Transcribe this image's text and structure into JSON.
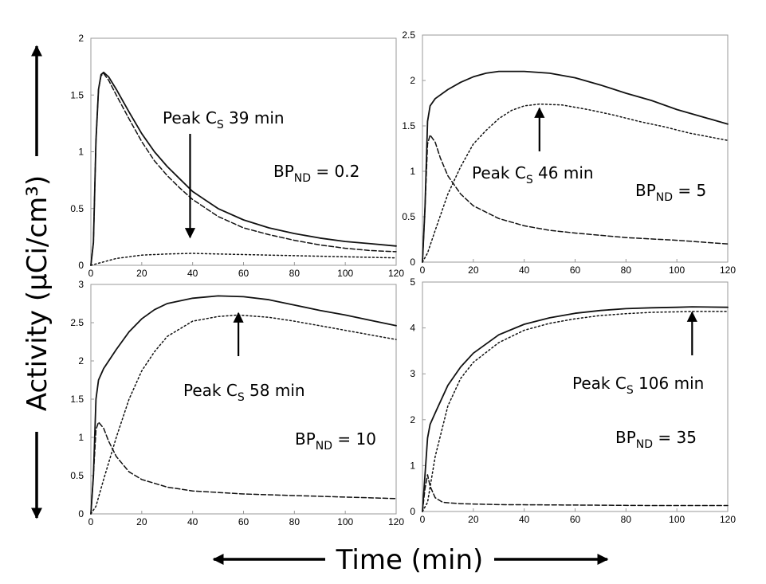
{
  "figure": {
    "ylabel": "Activity (µCi/cm³)",
    "xlabel": "Time (min)"
  },
  "chart_data": [
    {
      "type": "line",
      "x_ticks": [
        0,
        20,
        40,
        60,
        80,
        100,
        120
      ],
      "y_ticks": [
        0,
        0.5,
        1,
        1.5,
        2
      ],
      "xlim": [
        0,
        120
      ],
      "ylim": [
        0,
        2
      ],
      "grid": false,
      "annotations": [
        {
          "id": "peak",
          "prefix": "Peak C",
          "sub": "S",
          "suffix": " 39 min",
          "arrow_x": 39
        },
        {
          "id": "bp",
          "prefix": "BP",
          "sub": "ND",
          "suffix": " = 0.2"
        }
      ],
      "series": [
        {
          "style": "solid",
          "points": [
            [
              0,
              0
            ],
            [
              1,
              0.2
            ],
            [
              2,
              1.1
            ],
            [
              3,
              1.55
            ],
            [
              4,
              1.68
            ],
            [
              5,
              1.7
            ],
            [
              7,
              1.66
            ],
            [
              10,
              1.55
            ],
            [
              15,
              1.35
            ],
            [
              20,
              1.16
            ],
            [
              25,
              1.0
            ],
            [
              30,
              0.87
            ],
            [
              35,
              0.76
            ],
            [
              40,
              0.65
            ],
            [
              50,
              0.5
            ],
            [
              60,
              0.4
            ],
            [
              70,
              0.33
            ],
            [
              80,
              0.28
            ],
            [
              90,
              0.24
            ],
            [
              100,
              0.21
            ],
            [
              110,
              0.19
            ],
            [
              120,
              0.17
            ]
          ]
        },
        {
          "style": "dashed",
          "points": [
            [
              0,
              0
            ],
            [
              1,
              0.2
            ],
            [
              2,
              1.1
            ],
            [
              3,
              1.55
            ],
            [
              4,
              1.67
            ],
            [
              5,
              1.69
            ],
            [
              7,
              1.63
            ],
            [
              10,
              1.5
            ],
            [
              15,
              1.29
            ],
            [
              20,
              1.09
            ],
            [
              25,
              0.92
            ],
            [
              30,
              0.79
            ],
            [
              35,
              0.68
            ],
            [
              40,
              0.58
            ],
            [
              50,
              0.43
            ],
            [
              60,
              0.33
            ],
            [
              70,
              0.27
            ],
            [
              80,
              0.22
            ],
            [
              90,
              0.18
            ],
            [
              100,
              0.15
            ],
            [
              110,
              0.13
            ],
            [
              120,
              0.12
            ]
          ]
        },
        {
          "style": "dotted",
          "points": [
            [
              0,
              0
            ],
            [
              5,
              0.03
            ],
            [
              10,
              0.06
            ],
            [
              20,
              0.09
            ],
            [
              30,
              0.1
            ],
            [
              40,
              0.105
            ],
            [
              50,
              0.1
            ],
            [
              60,
              0.095
            ],
            [
              80,
              0.085
            ],
            [
              100,
              0.075
            ],
            [
              120,
              0.065
            ]
          ]
        }
      ]
    },
    {
      "type": "line",
      "x_ticks": [
        0,
        20,
        40,
        60,
        80,
        100,
        120
      ],
      "y_ticks": [
        0,
        0.5,
        1,
        1.5,
        2,
        2.5
      ],
      "xlim": [
        0,
        120
      ],
      "ylim": [
        0,
        2.5
      ],
      "grid": false,
      "annotations": [
        {
          "id": "peak",
          "prefix": "Peak C",
          "sub": "S",
          "suffix": " 46 min",
          "arrow_x": 46
        },
        {
          "id": "bp",
          "prefix": "BP",
          "sub": "ND",
          "suffix": " = 5"
        }
      ],
      "series": [
        {
          "style": "solid",
          "points": [
            [
              0,
              0
            ],
            [
              1,
              0.6
            ],
            [
              2,
              1.55
            ],
            [
              3,
              1.72
            ],
            [
              5,
              1.8
            ],
            [
              10,
              1.9
            ],
            [
              15,
              1.98
            ],
            [
              20,
              2.04
            ],
            [
              25,
              2.08
            ],
            [
              30,
              2.1
            ],
            [
              35,
              2.1
            ],
            [
              40,
              2.1
            ],
            [
              50,
              2.08
            ],
            [
              60,
              2.03
            ],
            [
              70,
              1.95
            ],
            [
              80,
              1.86
            ],
            [
              90,
              1.78
            ],
            [
              100,
              1.68
            ],
            [
              110,
              1.6
            ],
            [
              120,
              1.52
            ]
          ]
        },
        {
          "style": "dashed",
          "points": [
            [
              0,
              0
            ],
            [
              1,
              0.6
            ],
            [
              2,
              1.3
            ],
            [
              3,
              1.4
            ],
            [
              5,
              1.32
            ],
            [
              7,
              1.15
            ],
            [
              10,
              0.95
            ],
            [
              15,
              0.75
            ],
            [
              20,
              0.62
            ],
            [
              30,
              0.48
            ],
            [
              40,
              0.4
            ],
            [
              50,
              0.35
            ],
            [
              60,
              0.32
            ],
            [
              80,
              0.27
            ],
            [
              100,
              0.24
            ],
            [
              120,
              0.2
            ]
          ]
        },
        {
          "style": "dotted",
          "points": [
            [
              0,
              0
            ],
            [
              2,
              0.1
            ],
            [
              5,
              0.35
            ],
            [
              10,
              0.75
            ],
            [
              15,
              1.05
            ],
            [
              20,
              1.3
            ],
            [
              25,
              1.45
            ],
            [
              30,
              1.58
            ],
            [
              35,
              1.67
            ],
            [
              40,
              1.72
            ],
            [
              46,
              1.74
            ],
            [
              55,
              1.73
            ],
            [
              65,
              1.68
            ],
            [
              75,
              1.62
            ],
            [
              85,
              1.55
            ],
            [
              95,
              1.49
            ],
            [
              105,
              1.42
            ],
            [
              120,
              1.34
            ]
          ]
        }
      ]
    },
    {
      "type": "line",
      "x_ticks": [
        0,
        20,
        40,
        60,
        80,
        100,
        120
      ],
      "y_ticks": [
        0,
        0.5,
        1,
        1.5,
        2,
        2.5,
        3
      ],
      "xlim": [
        0,
        120
      ],
      "ylim": [
        0,
        3
      ],
      "grid": false,
      "annotations": [
        {
          "id": "peak",
          "prefix": "Peak C",
          "sub": "S",
          "suffix": " 58 min",
          "arrow_x": 58
        },
        {
          "id": "bp",
          "prefix": "BP",
          "sub": "ND",
          "suffix": " = 10"
        }
      ],
      "series": [
        {
          "style": "solid",
          "points": [
            [
              0,
              0
            ],
            [
              1,
              0.5
            ],
            [
              2,
              1.5
            ],
            [
              3,
              1.75
            ],
            [
              5,
              1.9
            ],
            [
              10,
              2.15
            ],
            [
              15,
              2.38
            ],
            [
              20,
              2.55
            ],
            [
              25,
              2.67
            ],
            [
              30,
              2.75
            ],
            [
              40,
              2.82
            ],
            [
              50,
              2.85
            ],
            [
              60,
              2.84
            ],
            [
              70,
              2.8
            ],
            [
              80,
              2.73
            ],
            [
              90,
              2.66
            ],
            [
              100,
              2.6
            ],
            [
              110,
              2.53
            ],
            [
              120,
              2.46
            ]
          ]
        },
        {
          "style": "dashed",
          "points": [
            [
              0,
              0
            ],
            [
              1,
              0.5
            ],
            [
              2,
              1.1
            ],
            [
              3,
              1.2
            ],
            [
              5,
              1.12
            ],
            [
              7,
              0.95
            ],
            [
              10,
              0.75
            ],
            [
              15,
              0.55
            ],
            [
              20,
              0.45
            ],
            [
              30,
              0.35
            ],
            [
              40,
              0.3
            ],
            [
              60,
              0.26
            ],
            [
              80,
              0.24
            ],
            [
              100,
              0.22
            ],
            [
              120,
              0.2
            ]
          ]
        },
        {
          "style": "dotted",
          "points": [
            [
              0,
              0
            ],
            [
              2,
              0.1
            ],
            [
              5,
              0.45
            ],
            [
              10,
              1.0
            ],
            [
              15,
              1.5
            ],
            [
              20,
              1.87
            ],
            [
              25,
              2.12
            ],
            [
              30,
              2.32
            ],
            [
              40,
              2.52
            ],
            [
              50,
              2.58
            ],
            [
              58,
              2.6
            ],
            [
              70,
              2.57
            ],
            [
              80,
              2.52
            ],
            [
              90,
              2.46
            ],
            [
              100,
              2.4
            ],
            [
              110,
              2.34
            ],
            [
              120,
              2.28
            ]
          ]
        }
      ]
    },
    {
      "type": "line",
      "x_ticks": [
        0,
        20,
        40,
        60,
        80,
        100,
        120
      ],
      "y_ticks": [
        0,
        1,
        2,
        3,
        4,
        5
      ],
      "xlim": [
        0,
        120
      ],
      "ylim": [
        0,
        5
      ],
      "grid": false,
      "annotations": [
        {
          "id": "peak",
          "prefix": "Peak C",
          "sub": "S",
          "suffix": " 106 min",
          "arrow_x": 106
        },
        {
          "id": "bp",
          "prefix": "BP",
          "sub": "ND",
          "suffix": " = 35"
        }
      ],
      "series": [
        {
          "style": "solid",
          "points": [
            [
              0,
              0
            ],
            [
              1,
              0.8
            ],
            [
              2,
              1.6
            ],
            [
              3,
              1.9
            ],
            [
              5,
              2.15
            ],
            [
              10,
              2.75
            ],
            [
              15,
              3.15
            ],
            [
              20,
              3.45
            ],
            [
              30,
              3.85
            ],
            [
              40,
              4.08
            ],
            [
              50,
              4.22
            ],
            [
              60,
              4.32
            ],
            [
              70,
              4.38
            ],
            [
              80,
              4.42
            ],
            [
              90,
              4.44
            ],
            [
              100,
              4.45
            ],
            [
              106,
              4.46
            ],
            [
              120,
              4.45
            ]
          ]
        },
        {
          "style": "dashed",
          "points": [
            [
              0,
              0
            ],
            [
              1,
              0.5
            ],
            [
              2,
              0.8
            ],
            [
              3,
              0.55
            ],
            [
              5,
              0.3
            ],
            [
              8,
              0.2
            ],
            [
              15,
              0.17
            ],
            [
              30,
              0.15
            ],
            [
              60,
              0.14
            ],
            [
              90,
              0.13
            ],
            [
              120,
              0.13
            ]
          ]
        },
        {
          "style": "dotted",
          "points": [
            [
              0,
              0
            ],
            [
              2,
              0.2
            ],
            [
              5,
              1.2
            ],
            [
              10,
              2.3
            ],
            [
              15,
              2.9
            ],
            [
              20,
              3.25
            ],
            [
              30,
              3.68
            ],
            [
              40,
              3.95
            ],
            [
              50,
              4.1
            ],
            [
              60,
              4.2
            ],
            [
              70,
              4.27
            ],
            [
              80,
              4.31
            ],
            [
              90,
              4.34
            ],
            [
              100,
              4.35
            ],
            [
              106,
              4.36
            ],
            [
              120,
              4.36
            ]
          ]
        }
      ]
    }
  ]
}
